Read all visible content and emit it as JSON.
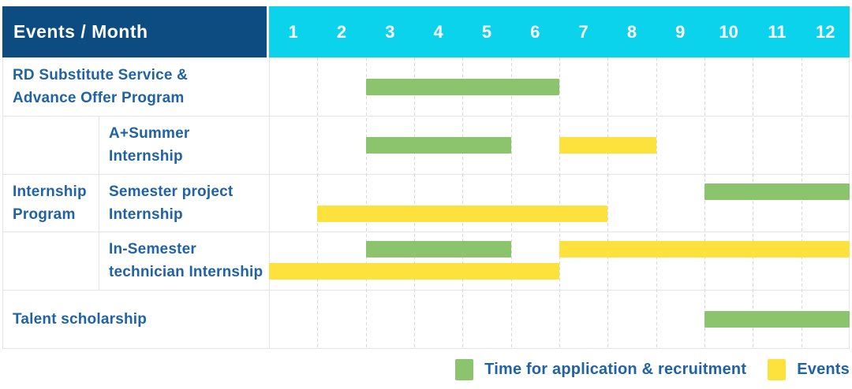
{
  "header": {
    "title": "Events / Month",
    "months": [
      "1",
      "2",
      "3",
      "4",
      "5",
      "6",
      "7",
      "8",
      "9",
      "10",
      "11",
      "12"
    ]
  },
  "colors": {
    "navy": "#0d4c81",
    "cyan": "#0cd3ec",
    "green": "#8bc46d",
    "yellow": "#fde23e",
    "text_blue": "#2063a5",
    "grid_solid": "#e4e4e4"
  },
  "group": {
    "label_lines": [
      "Internship",
      "Program"
    ]
  },
  "rows": [
    {
      "id": "rd-substitute-service",
      "label_lines": [
        "RD Substitute Service &",
        "Advance Offer Program"
      ],
      "in_group": false,
      "bars": [
        {
          "color": "green",
          "start": 3,
          "end": 6,
          "lane": "center"
        }
      ]
    },
    {
      "id": "a-plus-summer-internship",
      "label_lines": [
        "A+Summer",
        "Internship"
      ],
      "in_group": true,
      "bars": [
        {
          "color": "green",
          "start": 3,
          "end": 5,
          "lane": "center"
        },
        {
          "color": "yellow",
          "start": 7,
          "end": 8,
          "lane": "center"
        }
      ]
    },
    {
      "id": "semester-project-internship",
      "label_lines": [
        "Semester project",
        "Internship"
      ],
      "in_group": true,
      "bars": [
        {
          "color": "green",
          "start": 10,
          "end": 12,
          "lane": "top"
        },
        {
          "color": "yellow",
          "start": 2,
          "end": 7,
          "lane": "bottom"
        }
      ]
    },
    {
      "id": "in-semester-technician-internship",
      "label_lines": [
        "In-Semester",
        "technician Internship"
      ],
      "in_group": true,
      "bars": [
        {
          "color": "green",
          "start": 3,
          "end": 5,
          "lane": "top"
        },
        {
          "color": "yellow",
          "start": 7,
          "end": 12,
          "lane": "top"
        },
        {
          "color": "yellow",
          "start": 1,
          "end": 6,
          "lane": "bottom"
        }
      ]
    },
    {
      "id": "talent-scholarship",
      "label_lines": [
        "Talent scholarship"
      ],
      "in_group": false,
      "bars": [
        {
          "color": "green",
          "start": 10,
          "end": 12,
          "lane": "center"
        }
      ]
    }
  ],
  "legend": [
    {
      "color": "green",
      "label": "Time for application & recruitment"
    },
    {
      "color": "yellow",
      "label": "Events"
    }
  ],
  "chart_data": {
    "type": "gantt",
    "title": "Events / Month",
    "x_axis": {
      "label": "Month",
      "ticks": [
        1,
        2,
        3,
        4,
        5,
        6,
        7,
        8,
        9,
        10,
        11,
        12
      ],
      "range": [
        1,
        12
      ]
    },
    "series_legend": [
      {
        "name": "Time for application & recruitment",
        "color": "#8bc46d"
      },
      {
        "name": "Events",
        "color": "#fde23e"
      }
    ],
    "tasks": [
      {
        "row": "RD Substitute Service & Advance Offer Program",
        "group": null,
        "bars": [
          {
            "series": "Time for application & recruitment",
            "start_month": 3,
            "end_month": 6
          }
        ]
      },
      {
        "row": "A+Summer Internship",
        "group": "Internship Program",
        "bars": [
          {
            "series": "Time for application & recruitment",
            "start_month": 3,
            "end_month": 5
          },
          {
            "series": "Events",
            "start_month": 7,
            "end_month": 8
          }
        ]
      },
      {
        "row": "Semester project Internship",
        "group": "Internship Program",
        "bars": [
          {
            "series": "Time for application & recruitment",
            "start_month": 10,
            "end_month": 12
          },
          {
            "series": "Events",
            "start_month": 2,
            "end_month": 7
          }
        ]
      },
      {
        "row": "In-Semester technician Internship",
        "group": "Internship Program",
        "bars": [
          {
            "series": "Time for application & recruitment",
            "start_month": 3,
            "end_month": 5
          },
          {
            "series": "Events",
            "start_month": 7,
            "end_month": 12
          },
          {
            "series": "Events",
            "start_month": 1,
            "end_month": 6
          }
        ]
      },
      {
        "row": "Talent scholarship",
        "group": null,
        "bars": [
          {
            "series": "Time for application & recruitment",
            "start_month": 10,
            "end_month": 12
          }
        ]
      }
    ]
  }
}
